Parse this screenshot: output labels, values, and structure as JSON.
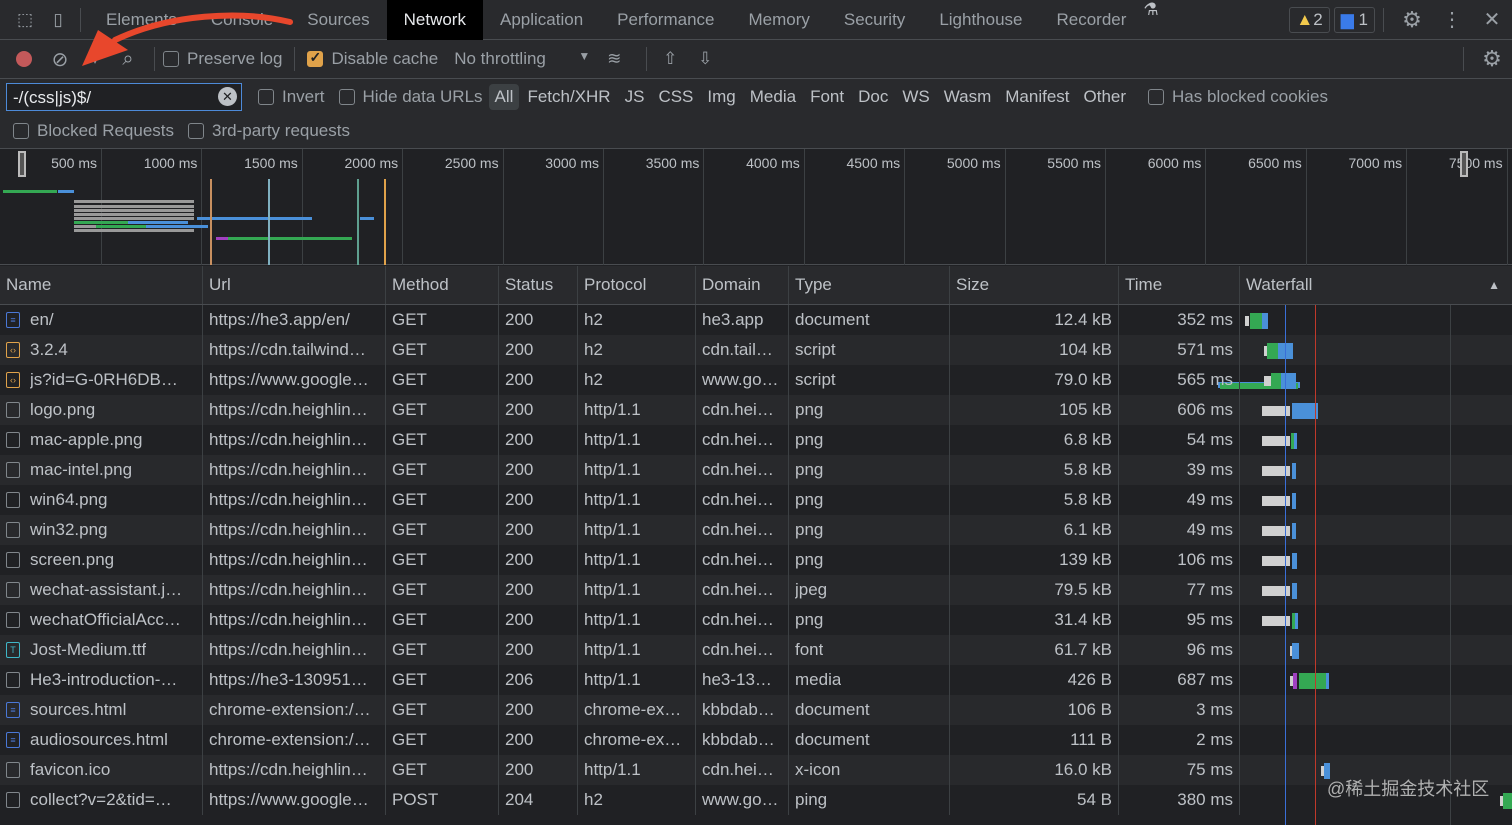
{
  "tabs": [
    "Elements",
    "Console",
    "Sources",
    "Network",
    "Application",
    "Performance",
    "Memory",
    "Security",
    "Lighthouse",
    "Recorder"
  ],
  "active_tab": "Network",
  "badges": {
    "warnings": "2",
    "messages": "1"
  },
  "toolbar": {
    "preserve_log": "Preserve log",
    "disable_cache": "Disable cache",
    "throttling": "No throttling"
  },
  "filter": {
    "value": "-/(css|js)$/",
    "invert": "Invert",
    "hide_data_urls": "Hide data URLs",
    "types": [
      "All",
      "Fetch/XHR",
      "JS",
      "CSS",
      "Img",
      "Media",
      "Font",
      "Doc",
      "WS",
      "Wasm",
      "Manifest",
      "Other"
    ],
    "has_blocked_cookies": "Has blocked cookies",
    "blocked_requests": "Blocked Requests",
    "third_party": "3rd-party requests"
  },
  "overview_ticks": [
    "500 ms",
    "1000 ms",
    "1500 ms",
    "2000 ms",
    "2500 ms",
    "3000 ms",
    "3500 ms",
    "4000 ms",
    "4500 ms",
    "5000 ms",
    "5500 ms",
    "6000 ms",
    "6500 ms",
    "7000 ms",
    "7500 ms"
  ],
  "columns": [
    "Name",
    "Url",
    "Method",
    "Status",
    "Protocol",
    "Domain",
    "Type",
    "Size",
    "Time",
    "Waterfall"
  ],
  "rows": [
    [
      "en/",
      "https://he3.app/en/",
      "GET",
      "200",
      "h2",
      "he3.app",
      "document",
      "12.4 kB",
      "352 ms",
      "doc"
    ],
    [
      "3.2.4",
      "https://cdn.tailwind…",
      "GET",
      "200",
      "h2",
      "cdn.tail…",
      "script",
      "104 kB",
      "571 ms",
      "script"
    ],
    [
      "js?id=G-0RH6DB…",
      "https://www.google…",
      "GET",
      "200",
      "h2",
      "www.go…",
      "script",
      "79.0 kB",
      "565 ms",
      "script"
    ],
    [
      "logo.png",
      "https://cdn.heighlin…",
      "GET",
      "200",
      "http/1.1",
      "cdn.hei…",
      "png",
      "105 kB",
      "606 ms",
      "img"
    ],
    [
      "mac-apple.png",
      "https://cdn.heighlin…",
      "GET",
      "200",
      "http/1.1",
      "cdn.hei…",
      "png",
      "6.8 kB",
      "54 ms",
      "img"
    ],
    [
      "mac-intel.png",
      "https://cdn.heighlin…",
      "GET",
      "200",
      "http/1.1",
      "cdn.hei…",
      "png",
      "5.8 kB",
      "39 ms",
      "img"
    ],
    [
      "win64.png",
      "https://cdn.heighlin…",
      "GET",
      "200",
      "http/1.1",
      "cdn.hei…",
      "png",
      "5.8 kB",
      "49 ms",
      "img"
    ],
    [
      "win32.png",
      "https://cdn.heighlin…",
      "GET",
      "200",
      "http/1.1",
      "cdn.hei…",
      "png",
      "6.1 kB",
      "49 ms",
      "img"
    ],
    [
      "screen.png",
      "https://cdn.heighlin…",
      "GET",
      "200",
      "http/1.1",
      "cdn.hei…",
      "png",
      "139 kB",
      "106 ms",
      "img"
    ],
    [
      "wechat-assistant.j…",
      "https://cdn.heighlin…",
      "GET",
      "200",
      "http/1.1",
      "cdn.hei…",
      "jpeg",
      "79.5 kB",
      "77 ms",
      "img"
    ],
    [
      "wechatOfficialAcc…",
      "https://cdn.heighlin…",
      "GET",
      "200",
      "http/1.1",
      "cdn.hei…",
      "png",
      "31.4 kB",
      "95 ms",
      "img"
    ],
    [
      "Jost-Medium.ttf",
      "https://cdn.heighlin…",
      "GET",
      "200",
      "http/1.1",
      "cdn.hei…",
      "font",
      "61.7 kB",
      "96 ms",
      "font"
    ],
    [
      "He3-introduction-…",
      "https://he3-130951…",
      "GET",
      "206",
      "http/1.1",
      "he3-13…",
      "media",
      "426 B",
      "687 ms",
      "other"
    ],
    [
      "sources.html",
      "chrome-extension:/…",
      "GET",
      "200",
      "chrome-ex…",
      "kbbdab…",
      "document",
      "106 B",
      "3 ms",
      "doc"
    ],
    [
      "audiosources.html",
      "chrome-extension:/…",
      "GET",
      "200",
      "chrome-ex…",
      "kbbdab…",
      "document",
      "111 B",
      "2 ms",
      "doc"
    ],
    [
      "favicon.ico",
      "https://cdn.heighlin…",
      "GET",
      "200",
      "http/1.1",
      "cdn.hei…",
      "x-icon",
      "16.0 kB",
      "75 ms",
      "other"
    ],
    [
      "collect?v=2&tid=…",
      "https://www.google…",
      "POST",
      "204",
      "h2",
      "www.go…",
      "ping",
      "54 B",
      "380 ms",
      "other"
    ]
  ],
  "watermark": "@稀土掘金技术社区",
  "colors": {
    "accent": "#e0a24a",
    "waiting": "#34a853",
    "download": "#4a90d9",
    "queue": "#d0d0d0",
    "annotation": "#e8472c"
  }
}
